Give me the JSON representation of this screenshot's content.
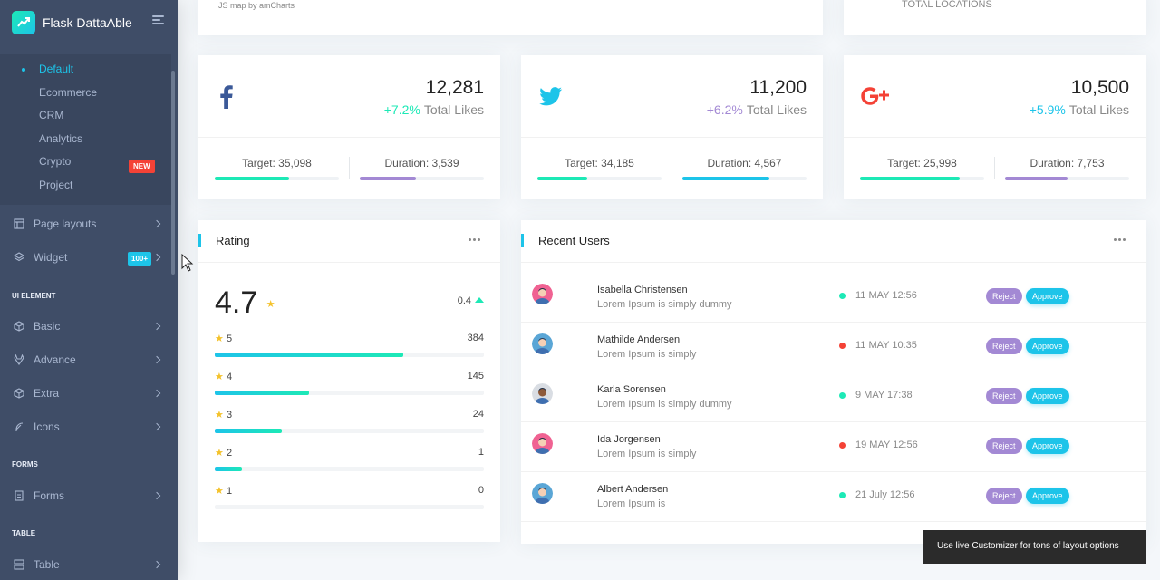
{
  "app": {
    "name": "Flask DattaAble"
  },
  "sidebar": {
    "submenu": [
      {
        "label": "Default",
        "active": true
      },
      {
        "label": "Ecommerce"
      },
      {
        "label": "CRM"
      },
      {
        "label": "Analytics"
      },
      {
        "label": "Crypto",
        "badge": "NEW"
      },
      {
        "label": "Project"
      }
    ],
    "page_layouts": "Page layouts",
    "widget": "Widget",
    "widget_badge": "100+",
    "caption_ui": "UI ELEMENT",
    "basic": "Basic",
    "advance": "Advance",
    "extra": "Extra",
    "icons": "Icons",
    "caption_forms": "FORMS",
    "forms": "Forms",
    "caption_table": "TABLE",
    "table": "Table"
  },
  "map_card": {
    "note": "JS map by amCharts"
  },
  "locations_card": {
    "label": "TOTAL LOCATIONS"
  },
  "social": [
    {
      "network": "facebook",
      "icon": "facebook-icon",
      "count": "12,281",
      "pct": "+7.2%",
      "pct_color": "#1de9b6",
      "label": "Total Likes",
      "target": "Target: 35,098",
      "duration": "Duration: 3,539",
      "target_pct": 60,
      "duration_pct": 45,
      "target_color": "#1de9b6",
      "duration_color": "#a389d4"
    },
    {
      "network": "twitter",
      "icon": "twitter-icon",
      "count": "11,200",
      "pct": "+6.2%",
      "pct_color": "#a389d4",
      "label": "Total Likes",
      "target": "Target: 34,185",
      "duration": "Duration: 4,567",
      "target_pct": 40,
      "duration_pct": 70,
      "target_color": "#1de9b6",
      "duration_color": "#1dc4e9"
    },
    {
      "network": "google-plus",
      "icon": "google-plus-icon",
      "count": "10,500",
      "pct": "+5.9%",
      "pct_color": "#1dc4e9",
      "label": "Total Likes",
      "target": "Target: 25,998",
      "duration": "Duration: 7,753",
      "target_pct": 80,
      "duration_pct": 50,
      "target_color": "#1de9b6",
      "duration_color": "#a389d4"
    }
  ],
  "rating": {
    "title": "Rating",
    "score": "4.7",
    "delta": "0.4",
    "rows": [
      {
        "stars": "5",
        "count": "384",
        "pct": 70
      },
      {
        "stars": "4",
        "count": "145",
        "pct": 35
      },
      {
        "stars": "3",
        "count": "24",
        "pct": 25
      },
      {
        "stars": "2",
        "count": "1",
        "pct": 10
      },
      {
        "stars": "1",
        "count": "0",
        "pct": 0
      }
    ]
  },
  "recent_users": {
    "title": "Recent Users",
    "reject_label": "Reject",
    "approve_label": "Approve",
    "users": [
      {
        "name": "Isabella Christensen",
        "desc": "Lorem Ipsum is simply dummy",
        "date": "11 MAY 12:56",
        "status_color": "#1de9b6",
        "avatar": "female"
      },
      {
        "name": "Mathilde Andersen",
        "desc": "Lorem Ipsum is simply",
        "date": "11 MAY 10:35",
        "status_color": "#f44236",
        "avatar": "male"
      },
      {
        "name": "Karla Sorensen",
        "desc": "Lorem Ipsum is simply dummy",
        "date": "9 MAY 17:38",
        "status_color": "#1de9b6",
        "avatar": "female-dark"
      },
      {
        "name": "Ida Jorgensen",
        "desc": "Lorem Ipsum is simply",
        "date": "19 MAY 12:56",
        "status_color": "#f44236",
        "avatar": "female"
      },
      {
        "name": "Albert Andersen",
        "desc": "Lorem Ipsum is",
        "date": "21 July 12:56",
        "status_color": "#1de9b6",
        "avatar": "male"
      }
    ]
  },
  "toast": {
    "text": "Use live Customizer for tons of layout options"
  }
}
